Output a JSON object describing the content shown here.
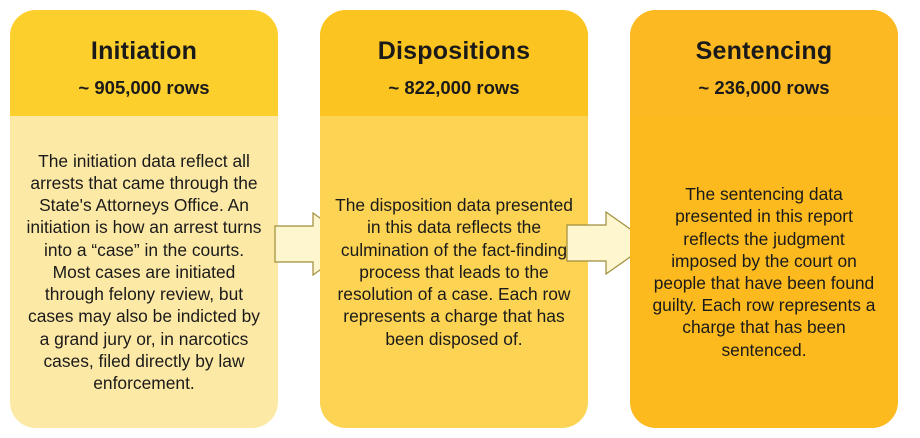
{
  "stages": [
    {
      "title": "Initiation",
      "rows": "~ 905,000 rows",
      "description": "The initiation data reflect all arrests that came through the State's Attorneys Office. An initiation is how an arrest turns into a “case” in the courts. Most cases are initiated through felony review, but cases may also be indicted by a grand jury or, in narcotics cases, filed directly by law enforcement."
    },
    {
      "title": "Dispositions",
      "rows": "~ 822,000 rows",
      "description": "The disposition data presented in this data reflects the culmination of the fact-finding process that leads to the resolution of a case. Each row represents a charge that has been disposed of."
    },
    {
      "title": "Sentencing",
      "rows": "~ 236,000 rows",
      "description": "The sentencing data presented in this report reflects the judgment imposed by the court on people that have been found guilty. Each row represents a charge that has been sentenced."
    }
  ],
  "colors": {
    "initiation_header": "#fccf2c",
    "initiation_body": "#fde9a6",
    "dispositions_header": "#fcc420",
    "dispositions_body": "#fcd352",
    "sentencing_header": "#fcb922",
    "sentencing_body": "#fcba1f",
    "arrow_fill": "#fdf6cf",
    "arrow_stroke": "#a08d3a"
  }
}
